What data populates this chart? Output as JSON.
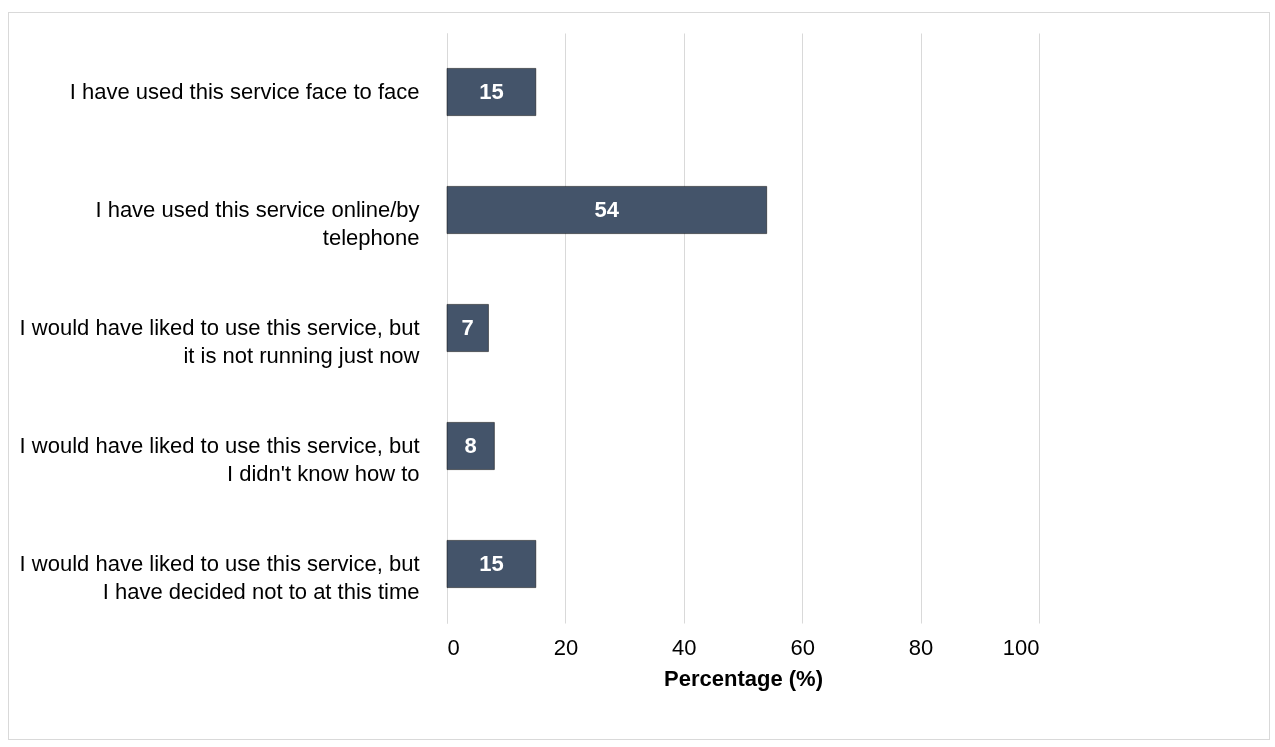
{
  "chart_data": {
    "type": "bar",
    "orientation": "horizontal",
    "categories": [
      "I have used this service face to face",
      "I have used this service online/by telephone",
      "I would have liked to use this service, but it is not running just now",
      "I would have liked to use this service, but I didn't know how to",
      "I would have liked to use this service, but I have decided not to at this time"
    ],
    "values": [
      15,
      54,
      7,
      8,
      15
    ],
    "color": "#44546a",
    "xlabel": "Percentage (%)",
    "xlim": [
      0,
      100
    ],
    "xticks": [
      0,
      20,
      40,
      60,
      80,
      100
    ],
    "grid": "x",
    "data_labels": true
  }
}
